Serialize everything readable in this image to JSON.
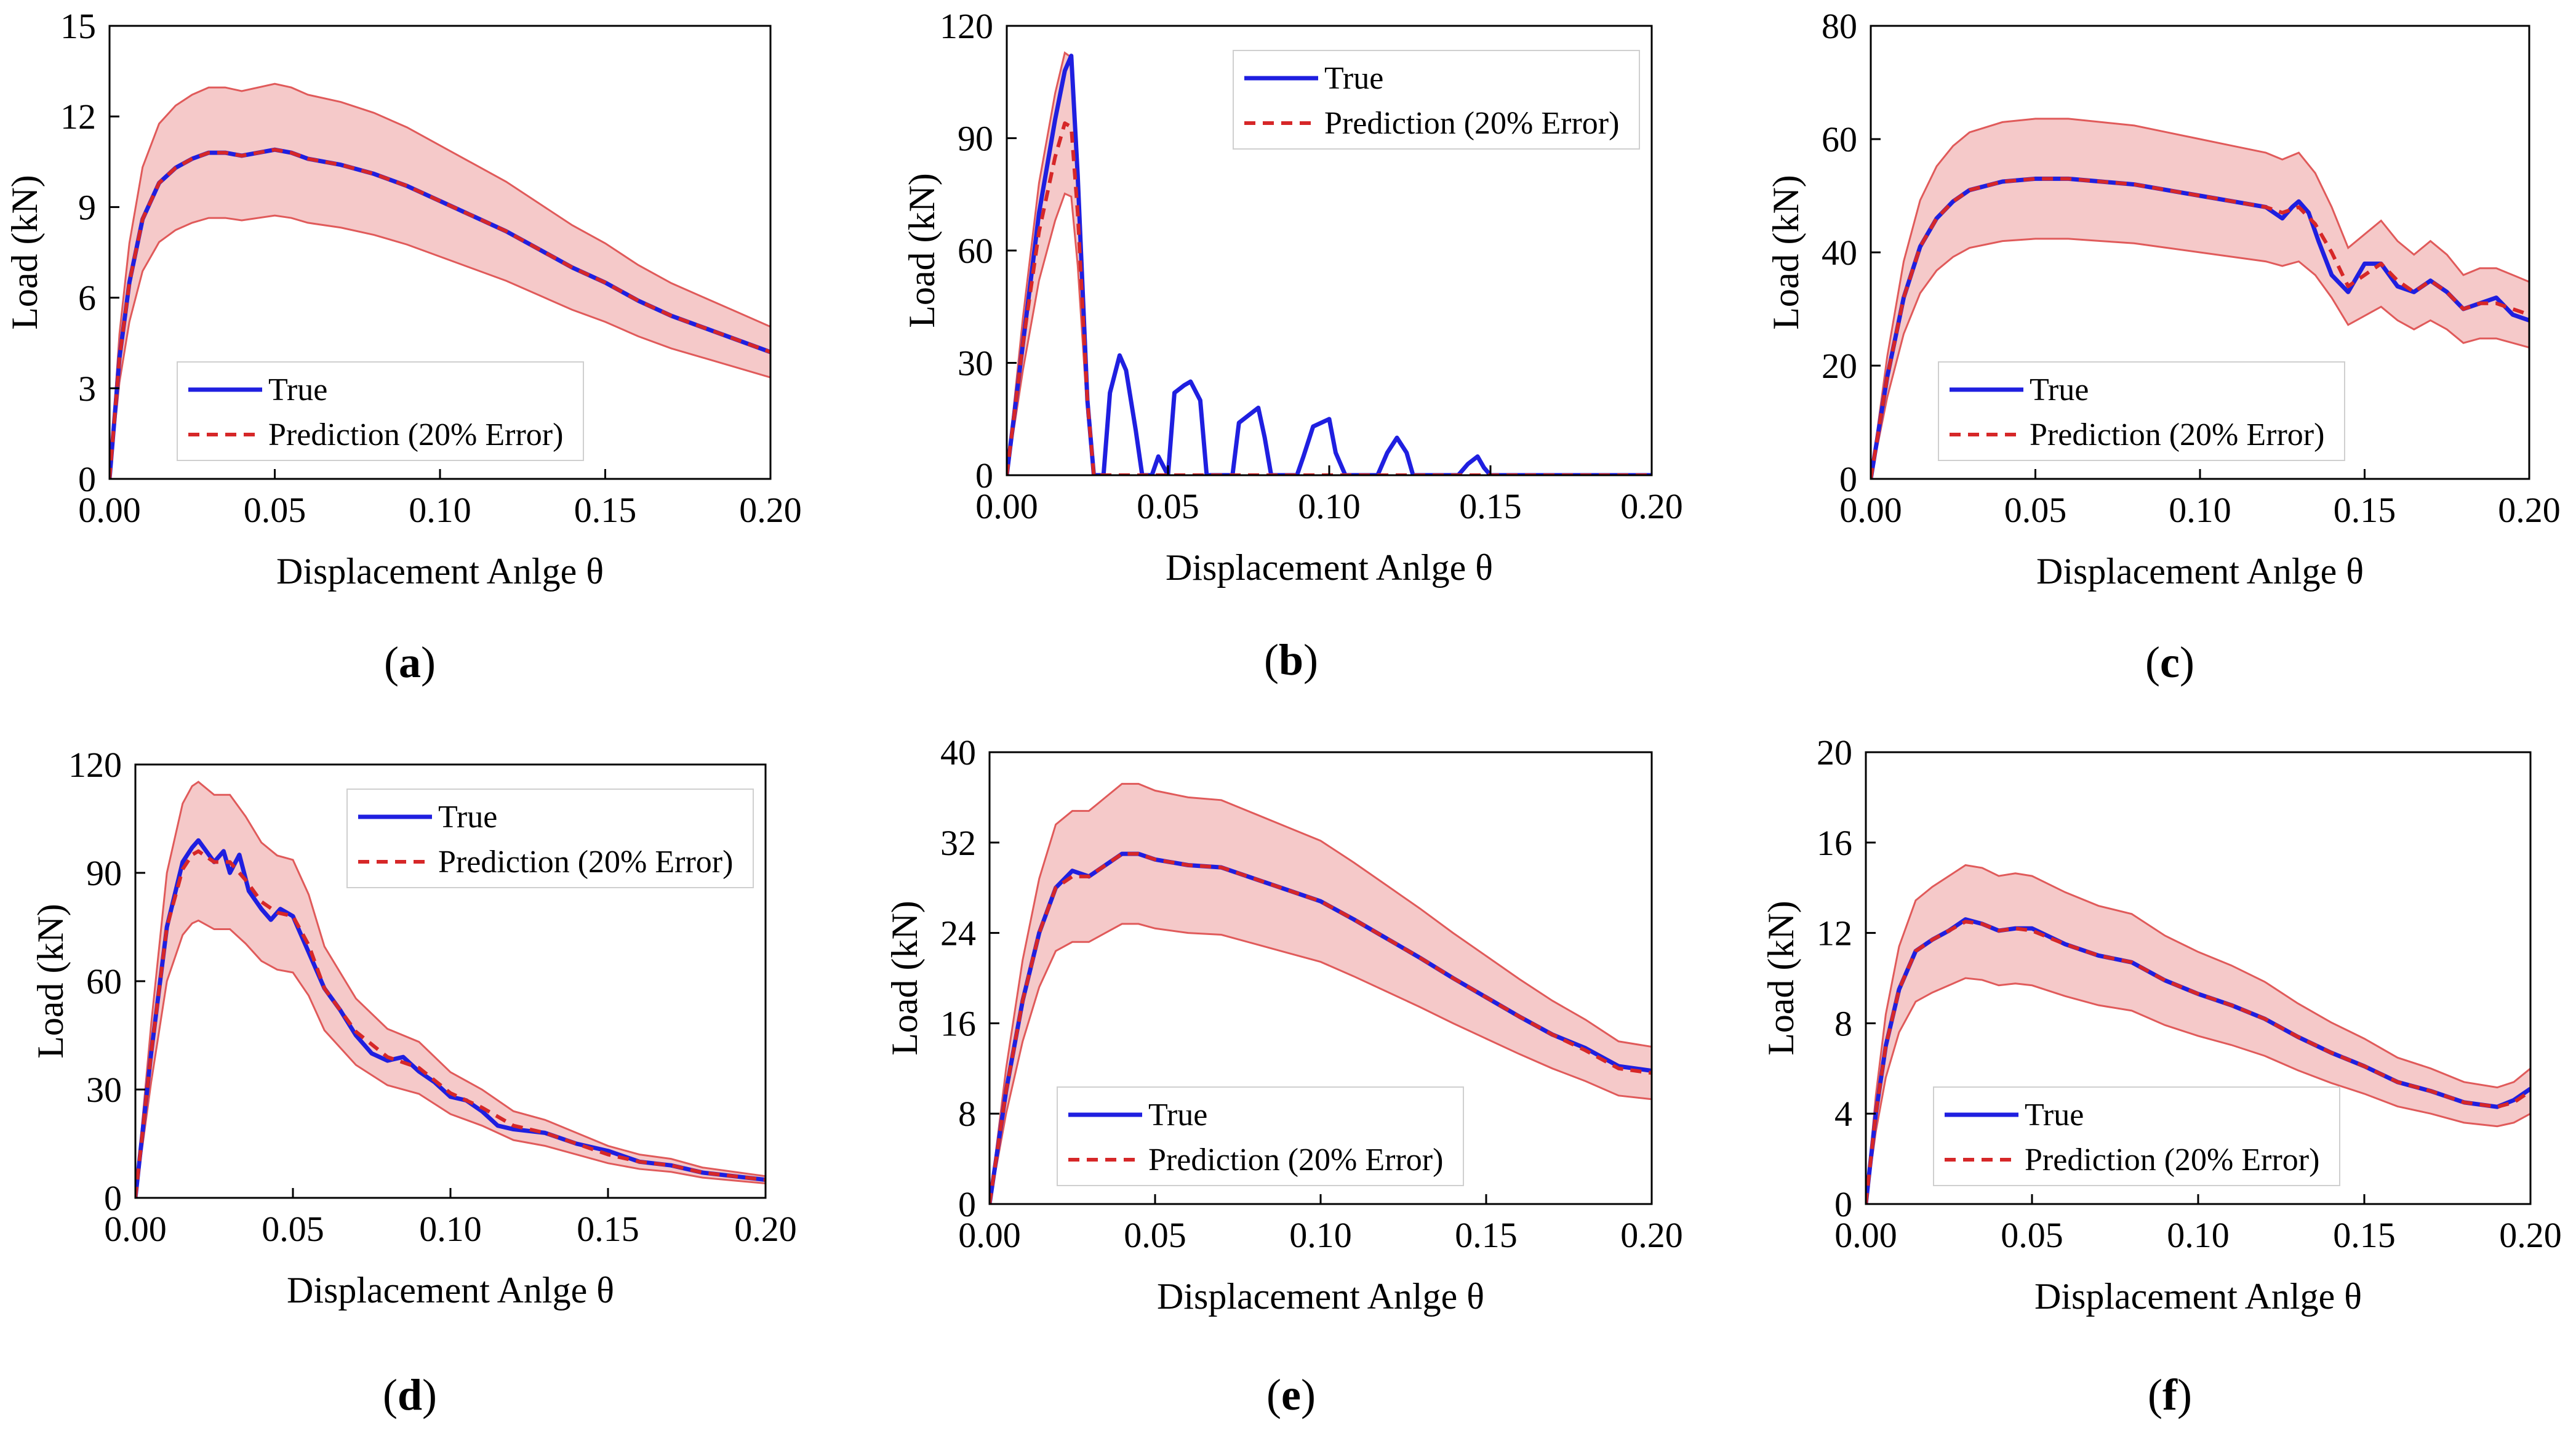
{
  "figure": {
    "type": "multi-panel",
    "panel_count": 6
  },
  "chart_data": [
    {
      "panel": "(a)",
      "panel_letter": "a",
      "type": "line",
      "xlabel": "Displacement Anlge θ",
      "ylabel": "Load (kN)",
      "xlim": [
        0,
        0.2
      ],
      "ylim": [
        0,
        15
      ],
      "xticks": [
        0,
        0.05,
        0.1,
        0.15,
        0.2
      ],
      "xtick_labels": [
        "0.00",
        "0.05",
        "0.10",
        "0.15",
        "0.20"
      ],
      "yticks": [
        0,
        3,
        6,
        9,
        12,
        15
      ],
      "ytick_labels": [
        "0",
        "3",
        "6",
        "9",
        "12",
        "15"
      ],
      "legend": {
        "position": "lower-left",
        "entries": [
          "True",
          "Prediction (20% Error)"
        ]
      },
      "band": "±20%",
      "band_color": "#f5c9c9",
      "band_edge_color": "#e05a5a",
      "series": [
        {
          "name": "True",
          "color": "#1f1fe0",
          "style": "solid",
          "x": [
            0,
            0.003,
            0.006,
            0.01,
            0.015,
            0.02,
            0.025,
            0.03,
            0.035,
            0.04,
            0.05,
            0.055,
            0.06,
            0.07,
            0.08,
            0.09,
            0.1,
            0.11,
            0.12,
            0.13,
            0.14,
            0.15,
            0.16,
            0.17,
            0.18,
            0.19,
            0.2
          ],
          "y": [
            0,
            4,
            6.5,
            8.6,
            9.8,
            10.3,
            10.6,
            10.8,
            10.8,
            10.7,
            10.9,
            10.8,
            10.6,
            10.4,
            10.1,
            9.7,
            9.2,
            8.7,
            8.2,
            7.6,
            7.0,
            6.5,
            5.9,
            5.4,
            5.0,
            4.6,
            4.2
          ]
        },
        {
          "name": "Prediction (20% Error)",
          "color": "#d62728",
          "style": "dashed",
          "x": [
            0,
            0.003,
            0.006,
            0.01,
            0.015,
            0.02,
            0.025,
            0.03,
            0.035,
            0.04,
            0.05,
            0.055,
            0.06,
            0.07,
            0.08,
            0.09,
            0.1,
            0.11,
            0.12,
            0.13,
            0.14,
            0.15,
            0.16,
            0.17,
            0.18,
            0.19,
            0.2
          ],
          "y": [
            0,
            4,
            6.5,
            8.6,
            9.8,
            10.3,
            10.6,
            10.8,
            10.8,
            10.7,
            10.9,
            10.8,
            10.6,
            10.4,
            10.1,
            9.7,
            9.2,
            8.7,
            8.2,
            7.6,
            7.0,
            6.5,
            5.9,
            5.4,
            5.0,
            4.6,
            4.2
          ]
        }
      ]
    },
    {
      "panel": "(b)",
      "panel_letter": "b",
      "type": "line",
      "xlabel": "Displacement Anlge θ",
      "ylabel": "Load (kN)",
      "xlim": [
        0,
        0.2
      ],
      "ylim": [
        0,
        120
      ],
      "xticks": [
        0,
        0.05,
        0.1,
        0.15,
        0.2
      ],
      "xtick_labels": [
        "0.00",
        "0.05",
        "0.10",
        "0.15",
        "0.20"
      ],
      "yticks": [
        0,
        30,
        60,
        90,
        120
      ],
      "ytick_labels": [
        "0",
        "30",
        "60",
        "90",
        "120"
      ],
      "legend": {
        "position": "top-right",
        "entries": [
          "True",
          "Prediction (20% Error)"
        ]
      },
      "band": "±20%",
      "band_color": "#f5c9c9",
      "band_edge_color": "#e05a5a",
      "series": [
        {
          "name": "True",
          "color": "#1f1fe0",
          "style": "solid",
          "x": [
            0,
            0.005,
            0.01,
            0.015,
            0.018,
            0.02,
            0.022,
            0.025,
            0.027,
            0.03,
            0.032,
            0.035,
            0.037,
            0.04,
            0.042,
            0.045,
            0.047,
            0.05,
            0.052,
            0.055,
            0.057,
            0.06,
            0.062,
            0.07,
            0.072,
            0.075,
            0.078,
            0.08,
            0.082,
            0.09,
            0.092,
            0.095,
            0.1,
            0.102,
            0.105,
            0.115,
            0.118,
            0.121,
            0.124,
            0.126,
            0.14,
            0.143,
            0.146,
            0.148,
            0.15,
            0.2
          ],
          "y": [
            0,
            35,
            70,
            95,
            108,
            112,
            80,
            20,
            0,
            0,
            22,
            32,
            28,
            12,
            0,
            0,
            5,
            0,
            22,
            24,
            25,
            20,
            0,
            0,
            14,
            16,
            18,
            10,
            0,
            0,
            5,
            13,
            15,
            6,
            0,
            0,
            6,
            10,
            6,
            0,
            0,
            3,
            5,
            2,
            0,
            0
          ]
        },
        {
          "name": "Prediction (20% Error)",
          "color": "#d62728",
          "style": "dashed",
          "x": [
            0,
            0.005,
            0.01,
            0.015,
            0.018,
            0.02,
            0.022,
            0.025,
            0.027,
            0.03,
            0.2
          ],
          "y": [
            0,
            35,
            65,
            85,
            94,
            93,
            70,
            20,
            0,
            0,
            0
          ]
        }
      ]
    },
    {
      "panel": "(c)",
      "panel_letter": "c",
      "type": "line",
      "xlabel": "Displacement Anlge θ",
      "ylabel": "Load (kN)",
      "xlim": [
        0,
        0.2
      ],
      "ylim": [
        0,
        80
      ],
      "xticks": [
        0,
        0.05,
        0.1,
        0.15,
        0.2
      ],
      "xtick_labels": [
        "0.00",
        "0.05",
        "0.10",
        "0.15",
        "0.20"
      ],
      "yticks": [
        0,
        20,
        40,
        60,
        80
      ],
      "ytick_labels": [
        "0",
        "20",
        "40",
        "60",
        "80"
      ],
      "legend": {
        "position": "lower-left",
        "entries": [
          "True",
          "Prediction (20% Error)"
        ]
      },
      "band": "±20%",
      "band_color": "#f5c9c9",
      "band_edge_color": "#e05a5a",
      "series": [
        {
          "name": "True",
          "color": "#1f1fe0",
          "style": "solid",
          "x": [
            0,
            0.005,
            0.01,
            0.015,
            0.02,
            0.025,
            0.03,
            0.04,
            0.05,
            0.06,
            0.07,
            0.08,
            0.09,
            0.1,
            0.11,
            0.12,
            0.125,
            0.128,
            0.13,
            0.133,
            0.136,
            0.14,
            0.145,
            0.15,
            0.155,
            0.16,
            0.165,
            0.17,
            0.175,
            0.18,
            0.185,
            0.19,
            0.195,
            0.2
          ],
          "y": [
            0,
            18,
            32,
            41,
            46,
            49,
            51,
            52.5,
            53,
            53,
            52.5,
            52,
            51,
            50,
            49,
            48,
            46,
            48,
            49,
            47,
            42,
            36,
            33,
            38,
            38,
            34,
            33,
            35,
            33,
            30,
            31,
            32,
            29,
            28
          ]
        },
        {
          "name": "Prediction (20% Error)",
          "color": "#d62728",
          "style": "dashed",
          "x": [
            0,
            0.005,
            0.01,
            0.015,
            0.02,
            0.025,
            0.03,
            0.04,
            0.05,
            0.06,
            0.07,
            0.08,
            0.09,
            0.1,
            0.11,
            0.12,
            0.125,
            0.13,
            0.135,
            0.14,
            0.145,
            0.15,
            0.155,
            0.16,
            0.165,
            0.17,
            0.175,
            0.18,
            0.185,
            0.19,
            0.195,
            0.2
          ],
          "y": [
            0,
            18,
            32,
            41,
            46,
            49,
            51,
            52.5,
            53,
            53,
            52.5,
            52,
            51,
            50,
            49,
            48,
            47,
            48,
            45,
            40,
            34,
            36,
            38,
            35,
            33,
            35,
            33,
            30,
            31,
            31,
            30,
            29
          ]
        }
      ]
    },
    {
      "panel": "(d)",
      "panel_letter": "d",
      "type": "line",
      "xlabel": "Displacement Anlge θ",
      "ylabel": "Load (kN)",
      "xlim": [
        0,
        0.2
      ],
      "ylim": [
        0,
        120
      ],
      "xticks": [
        0,
        0.05,
        0.1,
        0.15,
        0.2
      ],
      "xtick_labels": [
        "0.00",
        "0.05",
        "0.10",
        "0.15",
        "0.20"
      ],
      "yticks": [
        0,
        30,
        60,
        90,
        120
      ],
      "ytick_labels": [
        "0",
        "30",
        "60",
        "90",
        "120"
      ],
      "legend": {
        "position": "top-right",
        "entries": [
          "True",
          "Prediction (20% Error)"
        ]
      },
      "band": "±20%",
      "band_color": "#f5c9c9",
      "band_edge_color": "#e05a5a",
      "series": [
        {
          "name": "True",
          "color": "#1f1fe0",
          "style": "solid",
          "x": [
            0,
            0.005,
            0.01,
            0.015,
            0.018,
            0.02,
            0.025,
            0.028,
            0.03,
            0.033,
            0.036,
            0.04,
            0.043,
            0.046,
            0.05,
            0.055,
            0.06,
            0.065,
            0.07,
            0.075,
            0.08,
            0.085,
            0.09,
            0.095,
            0.1,
            0.105,
            0.11,
            0.115,
            0.12,
            0.13,
            0.14,
            0.15,
            0.16,
            0.17,
            0.18,
            0.19,
            0.2
          ],
          "y": [
            0,
            40,
            75,
            93,
            97,
            99,
            93,
            96,
            90,
            95,
            85,
            80,
            77,
            80,
            78,
            68,
            58,
            52,
            45,
            40,
            38,
            39,
            35,
            32,
            28,
            27,
            24,
            20,
            19,
            18,
            15,
            13,
            10,
            9,
            7,
            6,
            5
          ]
        },
        {
          "name": "Prediction (20% Error)",
          "color": "#d62728",
          "style": "dashed",
          "x": [
            0,
            0.005,
            0.01,
            0.015,
            0.018,
            0.02,
            0.025,
            0.03,
            0.035,
            0.04,
            0.045,
            0.05,
            0.055,
            0.06,
            0.07,
            0.08,
            0.09,
            0.1,
            0.11,
            0.12,
            0.13,
            0.14,
            0.15,
            0.16,
            0.17,
            0.18,
            0.19,
            0.2
          ],
          "y": [
            0,
            40,
            75,
            91,
            95,
            96,
            93,
            93,
            88,
            82,
            79,
            78,
            70,
            58,
            46,
            39,
            36,
            29,
            25,
            20,
            18,
            15,
            12,
            10,
            9,
            7,
            6,
            5
          ]
        }
      ]
    },
    {
      "panel": "(e)",
      "panel_letter": "e",
      "type": "line",
      "xlabel": "Displacement Anlge θ",
      "ylabel": "Load (kN)",
      "xlim": [
        0,
        0.2
      ],
      "ylim": [
        0,
        40
      ],
      "xticks": [
        0,
        0.05,
        0.1,
        0.15,
        0.2
      ],
      "xtick_labels": [
        "0.00",
        "0.05",
        "0.10",
        "0.15",
        "0.20"
      ],
      "yticks": [
        0,
        8,
        16,
        24,
        32,
        40
      ],
      "ytick_labels": [
        "0",
        "8",
        "16",
        "24",
        "32",
        "40"
      ],
      "legend": {
        "position": "lower-left",
        "entries": [
          "True",
          "Prediction (20% Error)"
        ]
      },
      "band": "±20%",
      "band_color": "#f5c9c9",
      "band_edge_color": "#e05a5a",
      "series": [
        {
          "name": "True",
          "color": "#1f1fe0",
          "style": "solid",
          "x": [
            0,
            0.005,
            0.01,
            0.015,
            0.02,
            0.025,
            0.03,
            0.035,
            0.04,
            0.045,
            0.05,
            0.06,
            0.07,
            0.08,
            0.09,
            0.1,
            0.11,
            0.12,
            0.13,
            0.14,
            0.15,
            0.16,
            0.17,
            0.18,
            0.19,
            0.2
          ],
          "y": [
            0,
            10,
            18,
            24,
            28,
            29.5,
            29,
            30,
            31,
            31,
            30.5,
            30,
            29.8,
            28.8,
            27.8,
            26.8,
            25.2,
            23.5,
            21.8,
            20,
            18.3,
            16.6,
            15,
            13.8,
            12.2,
            11.8
          ]
        },
        {
          "name": "Prediction (20% Error)",
          "color": "#d62728",
          "style": "dashed",
          "x": [
            0,
            0.005,
            0.01,
            0.015,
            0.02,
            0.025,
            0.03,
            0.035,
            0.04,
            0.045,
            0.05,
            0.06,
            0.07,
            0.08,
            0.09,
            0.1,
            0.11,
            0.12,
            0.13,
            0.14,
            0.15,
            0.16,
            0.17,
            0.18,
            0.19,
            0.2
          ],
          "y": [
            0,
            10,
            18,
            24,
            28,
            29,
            29,
            30,
            31,
            31,
            30.5,
            30,
            29.8,
            28.8,
            27.8,
            26.8,
            25.2,
            23.5,
            21.8,
            20,
            18.3,
            16.6,
            15,
            13.6,
            12,
            11.6
          ]
        }
      ]
    },
    {
      "panel": "(f)",
      "panel_letter": "f",
      "type": "line",
      "xlabel": "Displacement Anlge θ",
      "ylabel": "Load (kN)",
      "xlim": [
        0,
        0.2
      ],
      "ylim": [
        0,
        20
      ],
      "xticks": [
        0,
        0.05,
        0.1,
        0.15,
        0.2
      ],
      "xtick_labels": [
        "0.00",
        "0.05",
        "0.10",
        "0.15",
        "0.20"
      ],
      "yticks": [
        0,
        4,
        8,
        12,
        16,
        20
      ],
      "ytick_labels": [
        "0",
        "4",
        "8",
        "12",
        "16",
        "20"
      ],
      "legend": {
        "position": "lower-left",
        "entries": [
          "True",
          "Prediction (20% Error)"
        ]
      },
      "band": "±20%",
      "band_color": "#f5c9c9",
      "band_edge_color": "#e05a5a",
      "series": [
        {
          "name": "True",
          "color": "#1f1fe0",
          "style": "solid",
          "x": [
            0,
            0.003,
            0.006,
            0.01,
            0.015,
            0.02,
            0.025,
            0.03,
            0.035,
            0.04,
            0.045,
            0.05,
            0.06,
            0.07,
            0.08,
            0.09,
            0.1,
            0.11,
            0.12,
            0.13,
            0.14,
            0.15,
            0.16,
            0.17,
            0.18,
            0.19,
            0.195,
            0.2
          ],
          "y": [
            0,
            4,
            7,
            9.5,
            11.2,
            11.7,
            12.1,
            12.6,
            12.4,
            12.1,
            12.2,
            12.2,
            11.5,
            11.0,
            10.7,
            9.9,
            9.3,
            8.8,
            8.2,
            7.4,
            6.7,
            6.1,
            5.4,
            5.0,
            4.5,
            4.3,
            4.6,
            5.1
          ]
        },
        {
          "name": "Prediction (20% Error)",
          "color": "#d62728",
          "style": "dashed",
          "x": [
            0,
            0.003,
            0.006,
            0.01,
            0.015,
            0.02,
            0.025,
            0.03,
            0.035,
            0.04,
            0.045,
            0.05,
            0.06,
            0.07,
            0.08,
            0.09,
            0.1,
            0.11,
            0.12,
            0.13,
            0.14,
            0.15,
            0.16,
            0.17,
            0.18,
            0.19,
            0.195,
            0.2
          ],
          "y": [
            0,
            4,
            7,
            9.5,
            11.2,
            11.7,
            12.1,
            12.5,
            12.4,
            12.1,
            12.2,
            12.1,
            11.5,
            11.0,
            10.7,
            9.9,
            9.3,
            8.8,
            8.2,
            7.4,
            6.7,
            6.1,
            5.4,
            5.0,
            4.5,
            4.3,
            4.5,
            5.0
          ]
        }
      ]
    }
  ]
}
